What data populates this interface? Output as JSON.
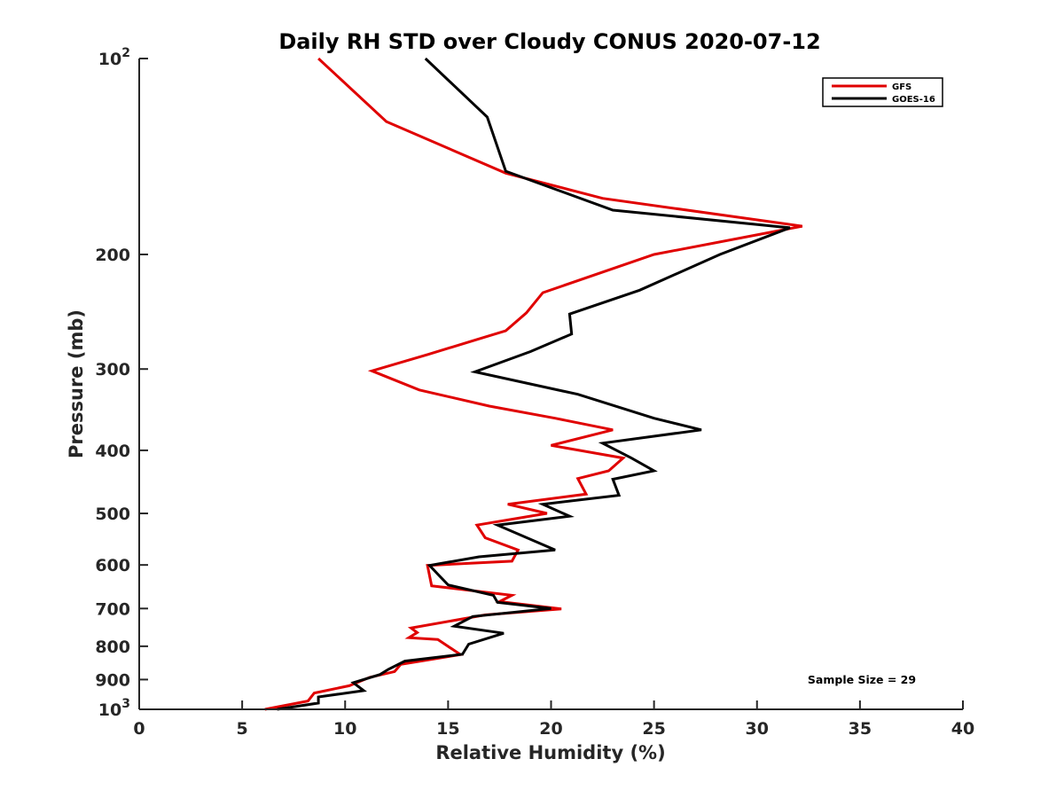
{
  "chart_data": {
    "type": "line",
    "title": "Daily RH STD over Cloudy CONUS 2020-07-12",
    "xlabel": "Relative Humidity (%)",
    "ylabel": "Pressure (mb)",
    "xlim": [
      0,
      40
    ],
    "ylim": [
      100,
      1000
    ],
    "y_scale": "log",
    "y_reversed": true,
    "grid": false,
    "legend_position": "top-right",
    "x_ticks": [
      0,
      5,
      10,
      15,
      20,
      25,
      30,
      35,
      40
    ],
    "x_tick_labels": [
      "0",
      "5",
      "10",
      "15",
      "20",
      "25",
      "30",
      "35",
      "40"
    ],
    "y_ticks": [
      100,
      200,
      300,
      400,
      500,
      600,
      700,
      800,
      900,
      1000
    ],
    "y_tick_labels": [
      {
        "base": "10",
        "exp": "2"
      },
      {
        "base": "200",
        "exp": ""
      },
      {
        "base": "300",
        "exp": ""
      },
      {
        "base": "400",
        "exp": ""
      },
      {
        "base": "500",
        "exp": ""
      },
      {
        "base": "600",
        "exp": ""
      },
      {
        "base": "700",
        "exp": ""
      },
      {
        "base": "800",
        "exp": ""
      },
      {
        "base": "900",
        "exp": ""
      },
      {
        "base": "10",
        "exp": "3"
      }
    ],
    "series": [
      {
        "name": "GFS",
        "color": "#e00000",
        "points": [
          [
            8.7,
            100
          ],
          [
            12.0,
            125
          ],
          [
            17.8,
            150
          ],
          [
            22.5,
            164
          ],
          [
            32.2,
            181
          ],
          [
            25.0,
            200
          ],
          [
            19.6,
            229
          ],
          [
            18.8,
            246
          ],
          [
            17.8,
            262
          ],
          [
            14.0,
            285
          ],
          [
            11.3,
            302
          ],
          [
            13.6,
            323
          ],
          [
            17.0,
            342
          ],
          [
            20.2,
            357
          ],
          [
            23.0,
            372
          ],
          [
            20.0,
            393
          ],
          [
            23.5,
            411
          ],
          [
            22.8,
            430
          ],
          [
            21.3,
            442
          ],
          [
            21.7,
            467
          ],
          [
            17.9,
            484
          ],
          [
            19.8,
            500
          ],
          [
            16.4,
            521
          ],
          [
            16.8,
            545
          ],
          [
            18.4,
            569
          ],
          [
            18.1,
            592
          ],
          [
            14.0,
            601
          ],
          [
            14.2,
            646
          ],
          [
            18.1,
            668
          ],
          [
            17.5,
            683
          ],
          [
            20.5,
            701
          ],
          [
            16.8,
            716
          ],
          [
            13.2,
            750
          ],
          [
            13.5,
            762
          ],
          [
            13.1,
            776
          ],
          [
            14.5,
            781
          ],
          [
            15.6,
            824
          ],
          [
            12.7,
            853
          ],
          [
            12.4,
            875
          ],
          [
            11.2,
            893
          ],
          [
            10.2,
            920
          ],
          [
            8.5,
            944
          ],
          [
            8.2,
            971
          ],
          [
            6.1,
            1000
          ]
        ]
      },
      {
        "name": "GOES-16",
        "color": "#000000",
        "points": [
          [
            13.9,
            100
          ],
          [
            16.9,
            123
          ],
          [
            17.8,
            149
          ],
          [
            23.0,
            171
          ],
          [
            31.6,
            182
          ],
          [
            28.2,
            200
          ],
          [
            24.3,
            227
          ],
          [
            20.9,
            247
          ],
          [
            21.0,
            265
          ],
          [
            19.0,
            282
          ],
          [
            16.3,
            303
          ],
          [
            21.3,
            328
          ],
          [
            25.0,
            357
          ],
          [
            27.3,
            372
          ],
          [
            22.5,
            390
          ],
          [
            23.9,
            411
          ],
          [
            25.0,
            430
          ],
          [
            23.0,
            443
          ],
          [
            23.3,
            469
          ],
          [
            19.6,
            484
          ],
          [
            20.9,
            505
          ],
          [
            17.4,
            521
          ],
          [
            20.2,
            569
          ],
          [
            16.5,
            583
          ],
          [
            14.1,
            601
          ],
          [
            14.5,
            620
          ],
          [
            15.0,
            644
          ],
          [
            17.2,
            668
          ],
          [
            17.4,
            685
          ],
          [
            20.0,
            700
          ],
          [
            16.2,
            720
          ],
          [
            15.3,
            745
          ],
          [
            17.7,
            764
          ],
          [
            16.0,
            794
          ],
          [
            15.7,
            823
          ],
          [
            12.9,
            843
          ],
          [
            12.1,
            868
          ],
          [
            11.7,
            884
          ],
          [
            10.4,
            910
          ],
          [
            10.9,
            936
          ],
          [
            8.7,
            957
          ],
          [
            8.7,
            978
          ],
          [
            6.7,
            1000
          ]
        ]
      }
    ],
    "annotations": [
      {
        "text": "Sample Size = 29",
        "position": "bottom-right"
      }
    ]
  }
}
